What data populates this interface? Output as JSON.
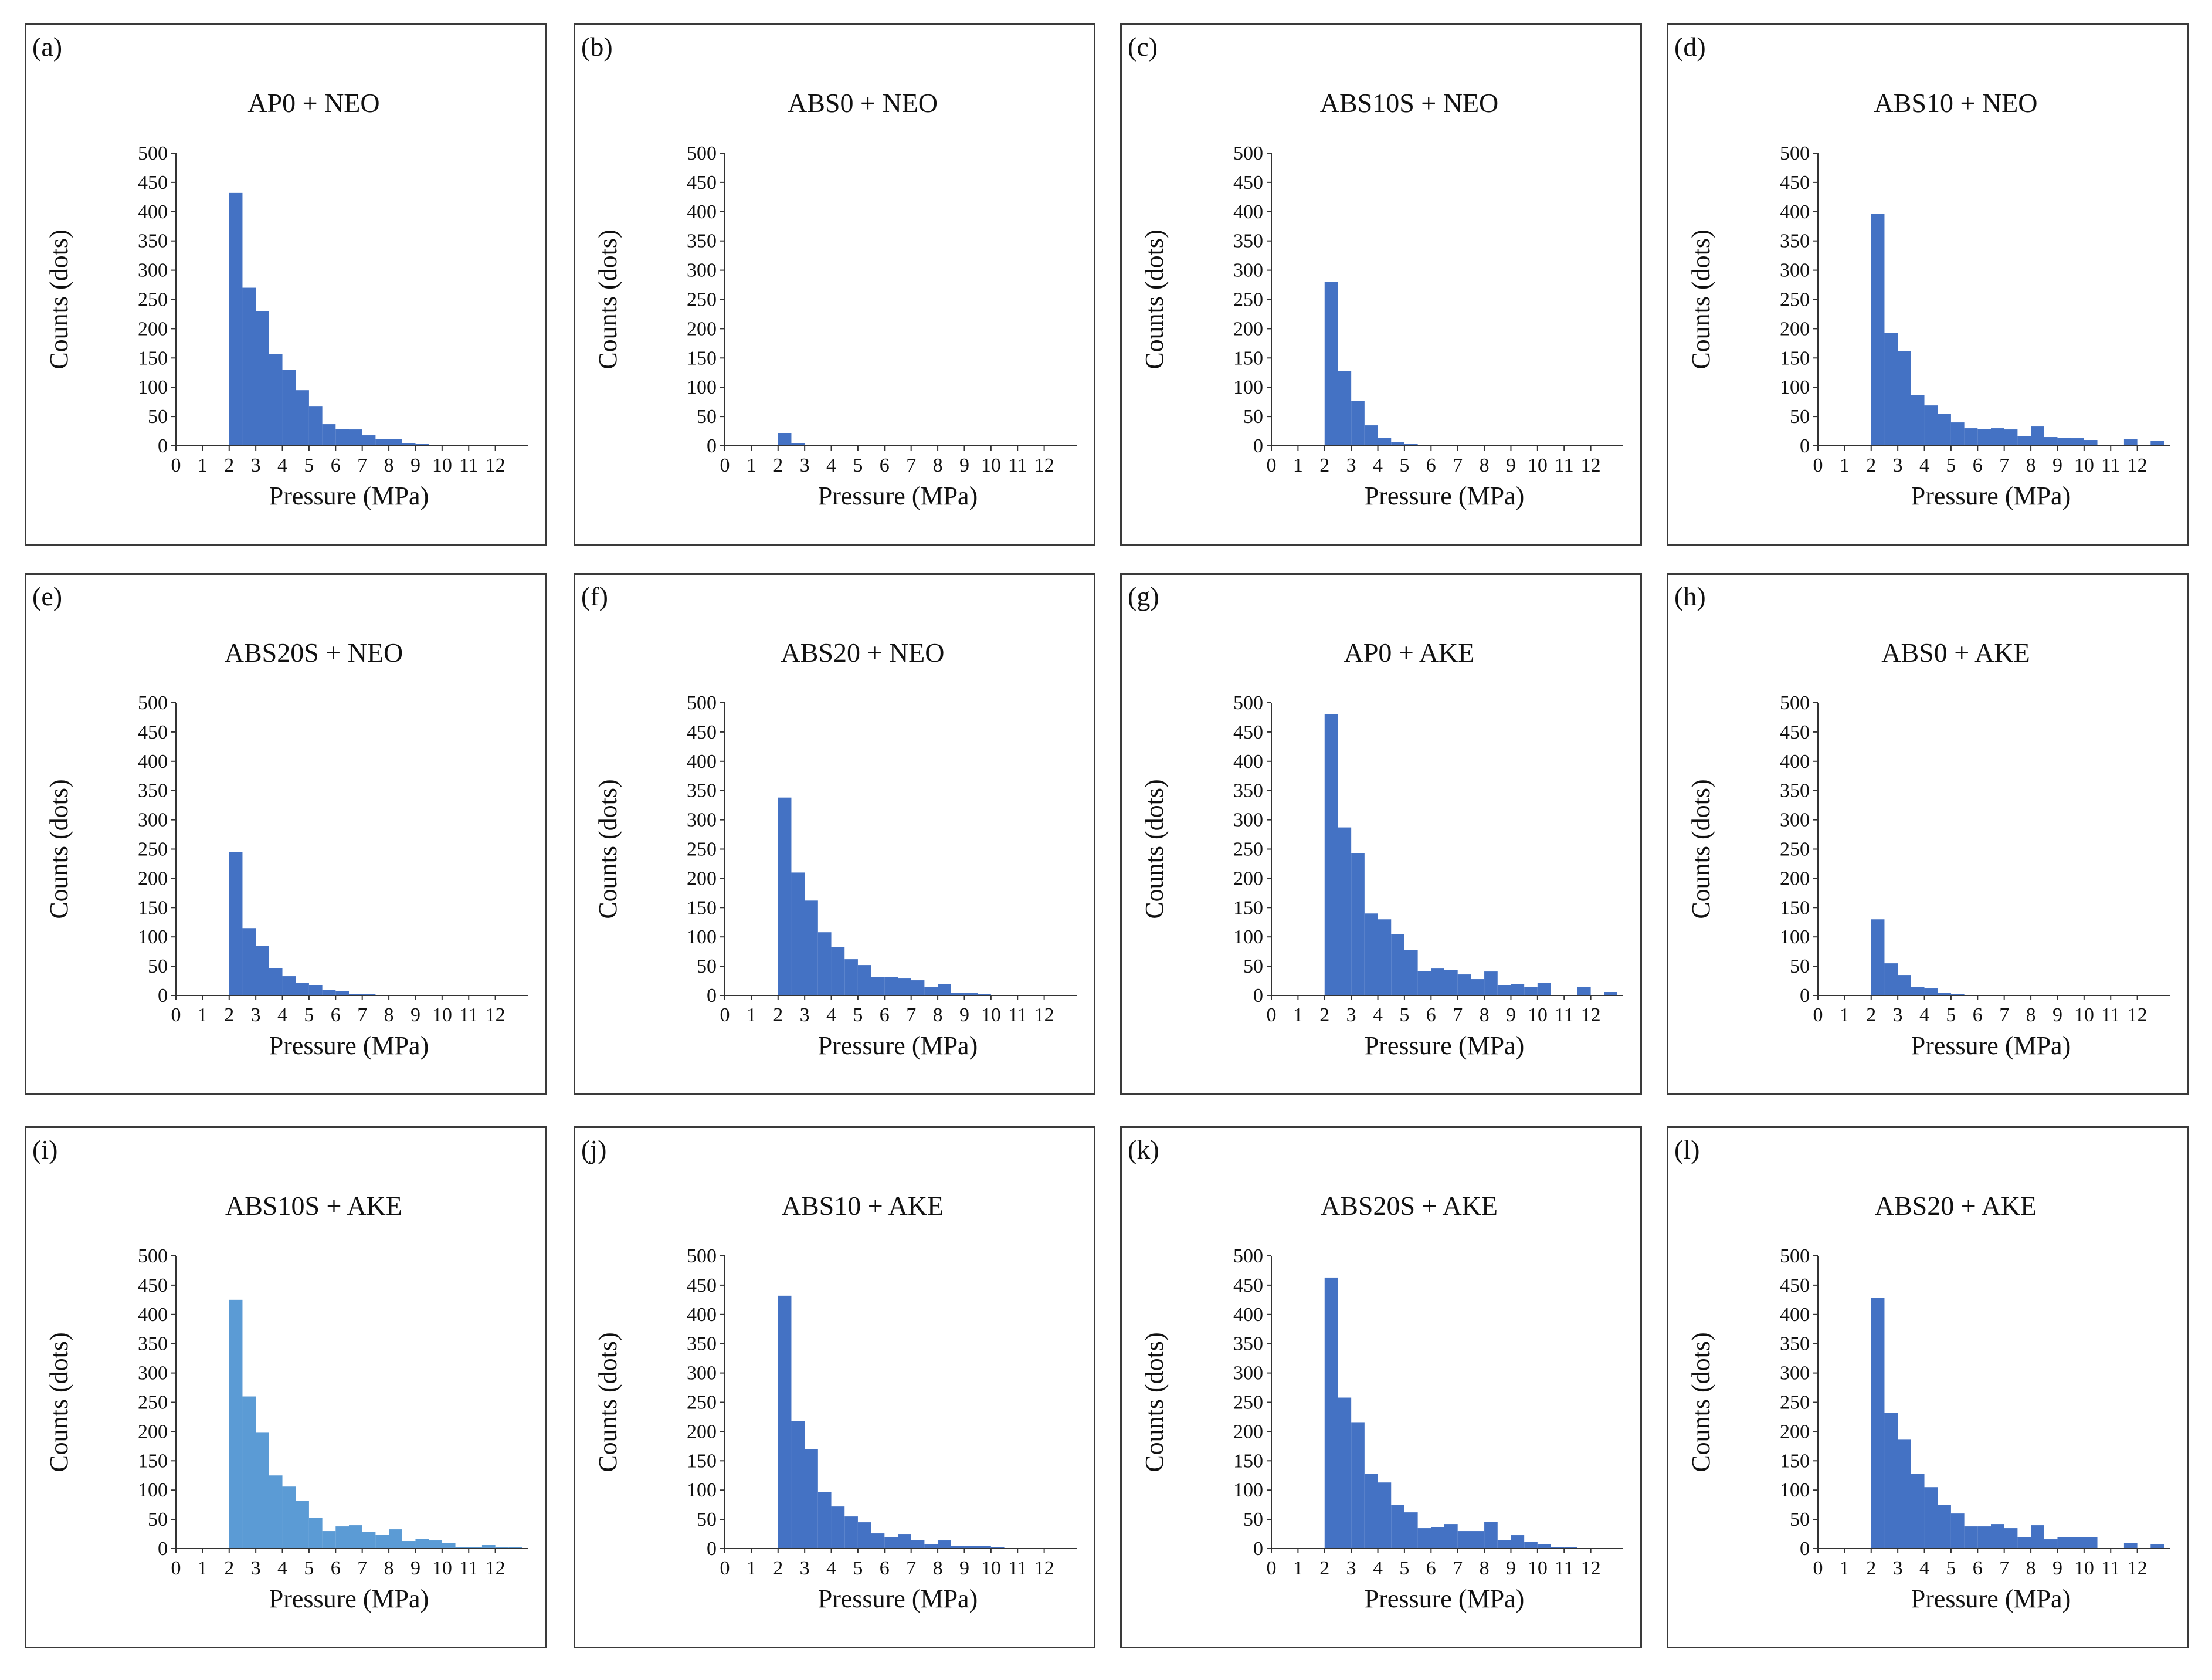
{
  "chart_data": [
    {
      "label": "(a)",
      "type": "bar",
      "title": "AP0 + NEO",
      "xlabel": "Pressure (MPa)",
      "ylabel": "Counts (dots)",
      "xlim": [
        0,
        13
      ],
      "ylim": [
        0,
        500
      ],
      "bin_width": 0.5,
      "bin_start": 2,
      "color": "#4472C4",
      "values": [
        432,
        270,
        230,
        157,
        130,
        95,
        68,
        37,
        29,
        28,
        18,
        12,
        12,
        5,
        3,
        2,
        1,
        0,
        0,
        0,
        0,
        0
      ]
    },
    {
      "label": "(b)",
      "type": "bar",
      "title": "ABS0 + NEO",
      "xlabel": "Pressure (MPa)",
      "ylabel": "Counts (dots)",
      "xlim": [
        0,
        13
      ],
      "ylim": [
        0,
        500
      ],
      "bin_width": 0.5,
      "bin_start": 2,
      "color": "#4472C4",
      "values": [
        22,
        4,
        1,
        0,
        0,
        0,
        0,
        0,
        0,
        0,
        0,
        0,
        0,
        0,
        0,
        0,
        0,
        0,
        0,
        0,
        0,
        0
      ]
    },
    {
      "label": "(c)",
      "type": "bar",
      "title": "ABS10S + NEO",
      "xlabel": "Pressure (MPa)",
      "ylabel": "Counts (dots)",
      "xlim": [
        0,
        13
      ],
      "ylim": [
        0,
        500
      ],
      "bin_width": 0.5,
      "bin_start": 2,
      "color": "#4472C4",
      "values": [
        280,
        128,
        77,
        35,
        14,
        6,
        3,
        1,
        0,
        0,
        0,
        0,
        0,
        0,
        0,
        0,
        0,
        0,
        0,
        0,
        0,
        0
      ]
    },
    {
      "label": "(d)",
      "type": "bar",
      "title": "ABS10 + NEO",
      "xlabel": "Pressure (MPa)",
      "ylabel": "Counts (dots)",
      "xlim": [
        0,
        13
      ],
      "ylim": [
        0,
        500
      ],
      "bin_width": 0.5,
      "bin_start": 2,
      "color": "#4472C4",
      "values": [
        396,
        193,
        162,
        87,
        69,
        55,
        40,
        30,
        29,
        30,
        28,
        17,
        33,
        15,
        14,
        13,
        10,
        0,
        0,
        11,
        0,
        9
      ]
    },
    {
      "label": "(e)",
      "type": "bar",
      "title": "ABS20S + NEO",
      "xlabel": "Pressure (MPa)",
      "ylabel": "Counts (dots)",
      "xlim": [
        0,
        13
      ],
      "ylim": [
        0,
        500
      ],
      "bin_width": 0.5,
      "bin_start": 2,
      "color": "#4472C4",
      "values": [
        245,
        115,
        85,
        47,
        33,
        22,
        18,
        10,
        8,
        3,
        2,
        1,
        0,
        0,
        0,
        0,
        0,
        0,
        0,
        0,
        0,
        0
      ]
    },
    {
      "label": "(f)",
      "type": "bar",
      "title": "ABS20 + NEO",
      "xlabel": "Pressure (MPa)",
      "ylabel": "Counts (dots)",
      "xlim": [
        0,
        13
      ],
      "ylim": [
        0,
        500
      ],
      "bin_width": 0.5,
      "bin_start": 2,
      "color": "#4472C4",
      "values": [
        338,
        210,
        162,
        108,
        83,
        62,
        52,
        32,
        32,
        29,
        26,
        15,
        20,
        5,
        5,
        2,
        1,
        0,
        0,
        0,
        0,
        0
      ]
    },
    {
      "label": "(g)",
      "type": "bar",
      "title": "AP0 + AKE",
      "xlabel": "Pressure (MPa)",
      "ylabel": "Counts (dots)",
      "xlim": [
        0,
        13
      ],
      "ylim": [
        0,
        500
      ],
      "bin_width": 0.5,
      "bin_start": 2,
      "color": "#4472C4",
      "values": [
        480,
        287,
        243,
        140,
        130,
        105,
        78,
        42,
        46,
        44,
        36,
        28,
        41,
        18,
        20,
        15,
        22,
        0,
        0,
        15,
        0,
        6
      ]
    },
    {
      "label": "(h)",
      "type": "bar",
      "title": "ABS0 + AKE",
      "xlabel": "Pressure (MPa)",
      "ylabel": "Counts (dots)",
      "xlim": [
        0,
        13
      ],
      "ylim": [
        0,
        500
      ],
      "bin_width": 0.5,
      "bin_start": 2,
      "color": "#4472C4",
      "values": [
        130,
        55,
        35,
        15,
        12,
        5,
        2,
        1,
        0,
        0,
        0,
        0,
        0,
        0,
        0,
        0,
        0,
        0,
        0,
        0,
        0,
        0
      ]
    },
    {
      "label": "(i)",
      "type": "bar",
      "title": "ABS10S + AKE",
      "xlabel": "Pressure (MPa)",
      "ylabel": "Counts (dots)",
      "xlim": [
        0,
        13
      ],
      "ylim": [
        0,
        500
      ],
      "bin_width": 0.5,
      "bin_start": 2,
      "color": "#5B9BD5",
      "values": [
        425,
        260,
        198,
        125,
        106,
        82,
        53,
        30,
        38,
        40,
        29,
        24,
        33,
        13,
        17,
        14,
        10,
        2,
        2,
        6,
        2,
        2
      ]
    },
    {
      "label": "(j)",
      "type": "bar",
      "title": "ABS10 + AKE",
      "xlabel": "Pressure (MPa)",
      "ylabel": "Counts (dots)",
      "xlim": [
        0,
        13
      ],
      "ylim": [
        0,
        500
      ],
      "bin_width": 0.5,
      "bin_start": 2,
      "color": "#4472C4",
      "values": [
        432,
        218,
        170,
        97,
        72,
        55,
        45,
        26,
        20,
        25,
        15,
        8,
        14,
        5,
        5,
        5,
        3,
        1,
        0,
        0,
        0,
        0
      ]
    },
    {
      "label": "(k)",
      "type": "bar",
      "title": "ABS20S + AKE",
      "xlabel": "Pressure (MPa)",
      "ylabel": "Counts (dots)",
      "xlim": [
        0,
        13
      ],
      "ylim": [
        0,
        500
      ],
      "bin_width": 0.5,
      "bin_start": 2,
      "color": "#4472C4",
      "values": [
        463,
        258,
        215,
        128,
        113,
        75,
        62,
        35,
        37,
        42,
        30,
        30,
        46,
        15,
        23,
        12,
        8,
        3,
        2,
        1,
        0,
        0
      ]
    },
    {
      "label": "(l)",
      "type": "bar",
      "title": "ABS20 + AKE",
      "xlabel": "Pressure (MPa)",
      "ylabel": "Counts (dots)",
      "xlim": [
        0,
        13
      ],
      "ylim": [
        0,
        500
      ],
      "bin_width": 0.5,
      "bin_start": 2,
      "color": "#4472C4",
      "values": [
        428,
        232,
        186,
        128,
        105,
        75,
        60,
        38,
        38,
        42,
        35,
        20,
        40,
        16,
        20,
        20,
        20,
        0,
        0,
        10,
        0,
        7
      ]
    }
  ],
  "axes": {
    "y_ticks": [
      "0",
      "50",
      "100",
      "150",
      "200",
      "250",
      "300",
      "350",
      "400",
      "450",
      "500"
    ],
    "x_ticks": [
      "0",
      "1",
      "2",
      "3",
      "4",
      "5",
      "6",
      "7",
      "8",
      "9",
      "10",
      "11",
      "12"
    ]
  }
}
